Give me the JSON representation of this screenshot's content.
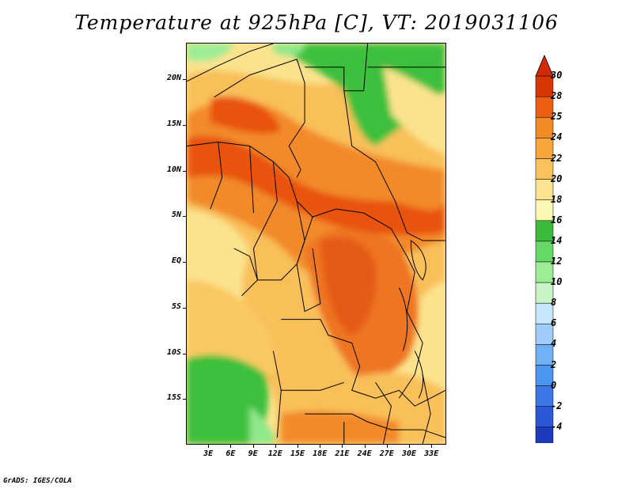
{
  "title": "Temperature at 925hPa [C], VT: 2019031106",
  "footer": "GrADS: IGES/COLA",
  "map": {
    "lon_range": [
      0,
      35
    ],
    "lat_range": [
      -20,
      24
    ],
    "y_ticks": [
      {
        "label": "20N",
        "lat": 20
      },
      {
        "label": "15N",
        "lat": 15
      },
      {
        "label": "10N",
        "lat": 10
      },
      {
        "label": "5N",
        "lat": 5
      },
      {
        "label": "EQ",
        "lat": 0
      },
      {
        "label": "5S",
        "lat": -5
      },
      {
        "label": "10S",
        "lat": -10
      },
      {
        "label": "15S",
        "lat": -15
      }
    ],
    "x_ticks": [
      {
        "label": "3E",
        "lon": 3
      },
      {
        "label": "6E",
        "lon": 6
      },
      {
        "label": "9E",
        "lon": 9
      },
      {
        "label": "12E",
        "lon": 12
      },
      {
        "label": "15E",
        "lon": 15
      },
      {
        "label": "18E",
        "lon": 18
      },
      {
        "label": "21E",
        "lon": 21
      },
      {
        "label": "24E",
        "lon": 24
      },
      {
        "label": "27E",
        "lon": 27
      },
      {
        "label": "30E",
        "lon": 30
      },
      {
        "label": "33E",
        "lon": 33
      }
    ]
  },
  "colorbar": {
    "labels": [
      "30",
      "28",
      "25",
      "24",
      "22",
      "20",
      "18",
      "16",
      "14",
      "12",
      "10",
      "8",
      "6",
      "4",
      "2",
      "0",
      "-2",
      "-4"
    ],
    "colors": [
      "#d0e0f8",
      "#0a1680",
      "#1d3cbb",
      "#2b58d6",
      "#3c78e6",
      "#4d96ef",
      "#6fb1f3",
      "#9fcdf8",
      "#c6e6fb",
      "#c8f3c4",
      "#9ded96",
      "#66d866",
      "#3cba3c",
      "#fbf8b4",
      "#fbe390",
      "#f9c25c",
      "#f6a63a",
      "#f28b26",
      "#ec5f12",
      "#d93606",
      "#d52a0a"
    ]
  },
  "colors": {
    "warm_dark": "#e8520e",
    "warm_mid": "#f28a2a",
    "warm_light": "#f9c05a",
    "pale": "#fbe38e",
    "green": "#3ec03c",
    "green_light": "#8fe88a"
  }
}
